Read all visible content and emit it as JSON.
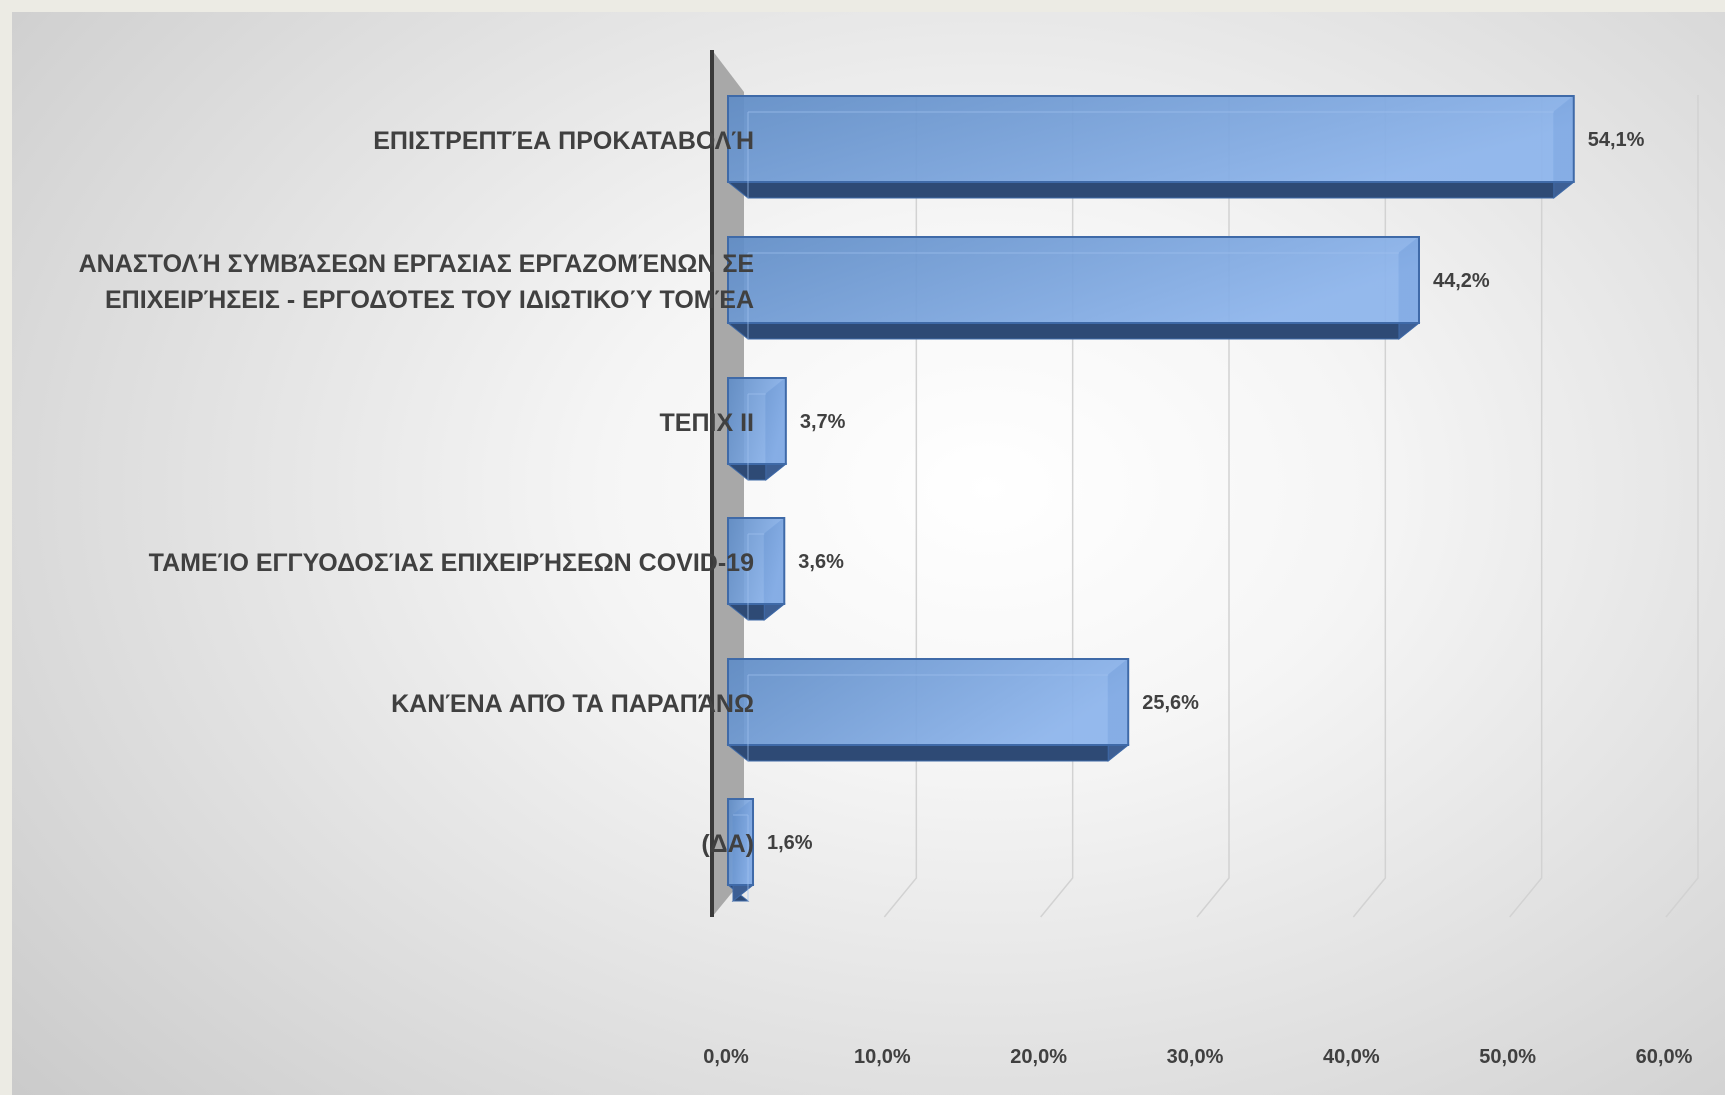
{
  "chart_data": {
    "type": "bar",
    "orientation": "horizontal",
    "style": "3d",
    "categories": [
      [
        "ΕΠΙΣΤΡΕΠΤΈΑ ΠΡΟΚΑΤΑΒΟΛΉ"
      ],
      [
        "ΑΝΑΣΤΟΛΉ ΣΥΜΒΆΣΕΩΝ ΕΡΓΑΣΙΑΣ ΕΡΓΑΖΟΜΈΝΩΝ ΣΕ",
        "ΕΠΙΧΕΙΡΉΣΕΙΣ - ΕΡΓΟΔΌΤΕΣ ΤΟΥ ΙΔΙΩΤΙΚΟΎ ΤΟΜΈΑ"
      ],
      [
        "ΤΕΠΙΧ ΙΙ"
      ],
      [
        "ΤΑΜΕΊΟ ΕΓΓΥΟΔΟΣΊΑΣ ΕΠΙΧΕΙΡΉΣΕΩΝ COVID-19"
      ],
      [
        "ΚΑΝΈΝΑ ΑΠΌ ΤΑ ΠΑΡΑΠΆΝΩ"
      ],
      [
        "(ΔΑ)"
      ]
    ],
    "values": [
      54.1,
      44.2,
      3.7,
      3.6,
      25.6,
      1.6
    ],
    "value_labels": [
      "54,1%",
      "44,2%",
      "3,7%",
      "3,6%",
      "25,6%",
      "1,6%"
    ],
    "xlim": [
      0,
      60
    ],
    "x_ticks": [
      "0,0%",
      "10,0%",
      "20,0%",
      "30,0%",
      "40,0%",
      "50,0%",
      "60,0%"
    ],
    "title": "",
    "xlabel": "",
    "ylabel": "",
    "grid": true,
    "colors": {
      "bar_front_light": "#8cb4ec",
      "bar_front_dark": "#5f8cc6",
      "bar_border": "#3f6aa8",
      "bar_side": "#3d5f94",
      "bar_bottom": "#2e4a75",
      "wall": "#a8a8a8",
      "axis_line": "#3a3a3a",
      "gridline": "#d2d2d2"
    }
  }
}
